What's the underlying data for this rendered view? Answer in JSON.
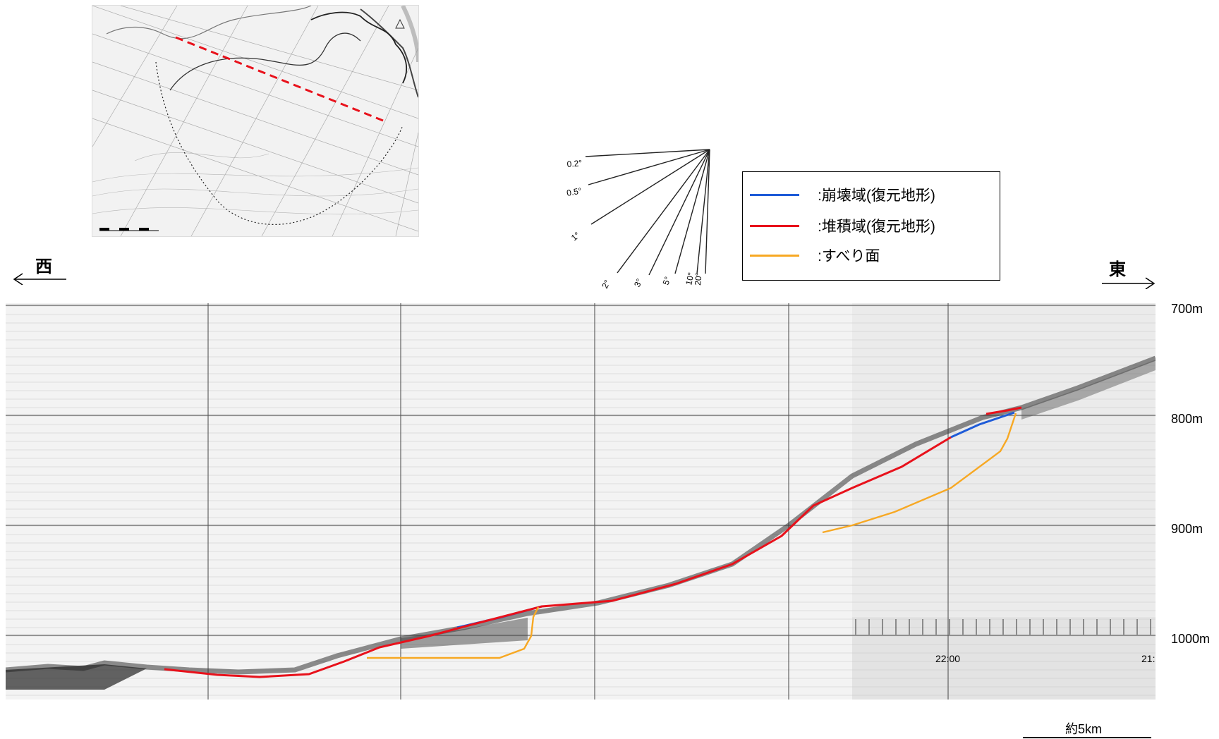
{
  "directions": {
    "west": "西",
    "east": "東"
  },
  "legend": {
    "items": [
      {
        "label": ":崩壊域(復元地形)",
        "color": "#1e5bd8"
      },
      {
        "label": ":堆積域(復元地形)",
        "color": "#e8111b"
      },
      {
        "label": ":すべり面",
        "color": "#f7a823"
      }
    ]
  },
  "slope_fan": {
    "angles": [
      "0.2°",
      "0.5°",
      "1°",
      "2°",
      "3°",
      "5°",
      "10°",
      "20°"
    ]
  },
  "depth_axis": {
    "labels": [
      "700m",
      "800m",
      "900m",
      "1000m"
    ]
  },
  "record_times": {
    "left": "22:00",
    "right": "21:"
  },
  "scale": {
    "label": "約5km"
  },
  "colors": {
    "collapse": "#1e5bd8",
    "deposit": "#e8111b",
    "slip": "#f7a823"
  }
}
